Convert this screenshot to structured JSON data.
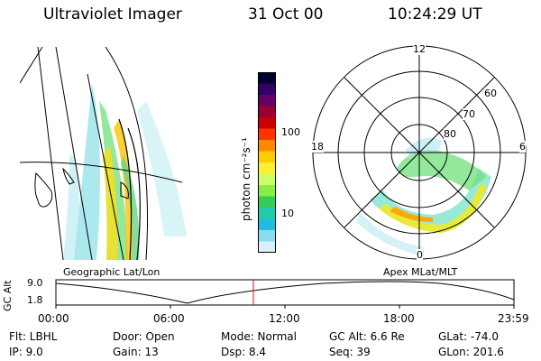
{
  "header": {
    "title": "Ultraviolet Imager",
    "date": "31 Oct 00",
    "time": "10:24:29 UT"
  },
  "colorbar": {
    "label": "photon cm⁻²s⁻¹",
    "ticks": [
      "100",
      "10"
    ],
    "colors": [
      "#000033",
      "#330066",
      "#660066",
      "#990033",
      "#cc0000",
      "#ff3300",
      "#ff8800",
      "#ffcc00",
      "#ffee33",
      "#ccff66",
      "#88ee44",
      "#33cc55",
      "#22ccaa",
      "#22bbdd",
      "#88ddee",
      "#ddeeff"
    ]
  },
  "geo_panel": {
    "label": "Geographic Lat/Lon"
  },
  "polar_panel": {
    "label": "Apex MLat/MLT",
    "mlt_labels": [
      "12",
      "18",
      "6",
      "0"
    ],
    "lat_labels": [
      "60",
      "70",
      "80"
    ]
  },
  "altitude_plot": {
    "ylabel": "GC Alt",
    "yticks": [
      "9.0",
      "1.8"
    ],
    "xticks": [
      "00:00",
      "06:00",
      "12:00",
      "18:00",
      "23:59"
    ],
    "current_time_marker": "10:24"
  },
  "info": {
    "flt": "Flt: LBHL",
    "ip": "IP:  9.0",
    "door": "Door: Open",
    "gain": "Gain: 13",
    "mode": "Mode: Normal",
    "dsp": "Dsp:     8.4",
    "gcalt": "GC Alt: 6.6 Re",
    "seq": "Seq: 39",
    "glat": "GLat: -74.0",
    "glon": "GLon: 201.6"
  },
  "accent_colors": {
    "marker": "#ff0000",
    "text": "#000000"
  }
}
